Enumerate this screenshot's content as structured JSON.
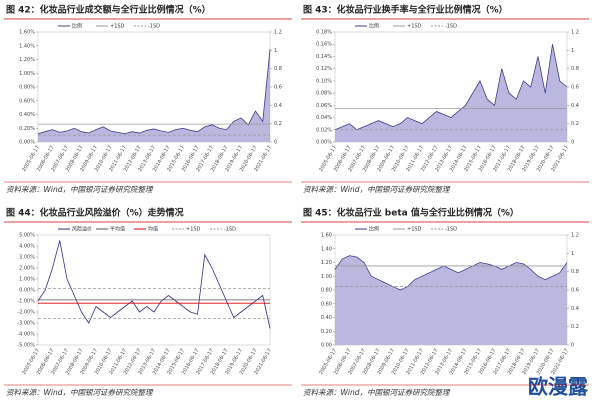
{
  "chart_data": [
    {
      "type": "area",
      "title": "图 42：化妆品行业成交额与全行业比例情况（%）",
      "source": "资料来源：Wind，中国银河证券研究院整理",
      "categories": [
        "2005-06-17",
        null,
        "2006-06-17",
        null,
        "2007-06-17",
        null,
        "2008-06-17",
        null,
        "2009-06-17",
        null,
        "2010-06-17",
        null,
        "2011-06-17",
        null,
        "2012-06-17",
        null,
        "2013-06-17",
        null,
        "2014-06-17",
        null,
        "2015-06-17",
        null,
        "2016-06-17",
        null,
        "2017-06-17",
        null,
        "2018-06-17",
        null,
        "2019-06-17",
        null,
        "2020-06-17",
        null,
        "2021-06-17"
      ],
      "series": [
        {
          "name": "比例",
          "color": "#3c3c8c",
          "values": [
            0.12,
            0.15,
            0.18,
            0.14,
            0.16,
            0.2,
            0.15,
            0.13,
            0.18,
            0.22,
            0.16,
            0.14,
            0.12,
            0.15,
            0.13,
            0.17,
            0.19,
            0.16,
            0.14,
            0.18,
            0.2,
            0.17,
            0.15,
            0.22,
            0.25,
            0.2,
            0.18,
            0.3,
            0.35,
            0.25,
            0.45,
            0.3,
            1.35
          ]
        }
      ],
      "hlines": [
        {
          "name": "+1SD",
          "value": 0.26,
          "color": "#999999",
          "dash": false
        },
        {
          "name": "-1SD",
          "value": 0.1,
          "color": "#999999",
          "dash": true
        }
      ],
      "ylim": [
        0,
        1.6
      ],
      "yticks": [
        {
          "value": 0,
          "label": "0.00%"
        },
        {
          "value": 0.2,
          "label": "0.20%"
        },
        {
          "value": 0.4,
          "label": "0.40%"
        },
        {
          "value": 0.6,
          "label": "0.60%"
        },
        {
          "value": 0.8,
          "label": "0.80%"
        },
        {
          "value": 1.0,
          "label": "1.00%"
        },
        {
          "value": 1.2,
          "label": "1.20%"
        },
        {
          "value": 1.4,
          "label": "1.40%"
        },
        {
          "value": 1.6,
          "label": "1.60%"
        }
      ],
      "y2lim": [
        0,
        1.2
      ],
      "y2ticks": [
        0,
        0.2,
        0.4,
        0.6,
        0.8,
        1,
        1.2
      ]
    },
    {
      "type": "area",
      "title": "图 43：化妆品行业换手率与全行业比例情况（%）",
      "source": "资料来源：Wind，中国银河证券研究院整理",
      "categories": [
        "2005-06-17",
        null,
        "2006-06-17",
        null,
        "2007-06-17",
        null,
        "2008-06-17",
        null,
        "2009-06-17",
        null,
        "2010-06-17",
        null,
        "2011-06-17",
        null,
        "2012-06-17",
        null,
        "2013-06-17",
        null,
        "2014-06-17",
        null,
        "2015-06-17",
        null,
        "2016-06-17",
        null,
        "2017-06-17",
        null,
        "2018-06-17",
        null,
        "2019-06-17",
        null,
        "2020-06-17",
        null,
        "2021-06-17"
      ],
      "series": [
        {
          "name": "比例",
          "color": "#3c3c8c",
          "values": [
            0.02,
            0.025,
            0.03,
            0.02,
            0.025,
            0.03,
            0.035,
            0.03,
            0.025,
            0.03,
            0.04,
            0.035,
            0.03,
            0.04,
            0.05,
            0.045,
            0.04,
            0.05,
            0.06,
            0.08,
            0.1,
            0.07,
            0.06,
            0.12,
            0.08,
            0.07,
            0.1,
            0.09,
            0.14,
            0.08,
            0.16,
            0.1,
            0.09
          ]
        }
      ],
      "hlines": [
        {
          "name": "+1SD",
          "value": 0.055,
          "color": "#999999",
          "dash": false
        },
        {
          "name": "-1SD",
          "value": 0.02,
          "color": "#999999",
          "dash": true
        }
      ],
      "ylim": [
        0,
        0.18
      ],
      "yticks": [
        {
          "value": 0,
          "label": "0.00%"
        },
        {
          "value": 0.02,
          "label": "0.02%"
        },
        {
          "value": 0.04,
          "label": "0.04%"
        },
        {
          "value": 0.06,
          "label": "0.06%"
        },
        {
          "value": 0.08,
          "label": "0.08%"
        },
        {
          "value": 0.1,
          "label": "0.10%"
        },
        {
          "value": 0.12,
          "label": "0.12%"
        },
        {
          "value": 0.14,
          "label": "0.14%"
        },
        {
          "value": 0.16,
          "label": "0.16%"
        },
        {
          "value": 0.18,
          "label": "0.18%"
        }
      ],
      "y2lim": [
        0,
        1.2
      ],
      "y2ticks": [
        0,
        0.2,
        0.4,
        0.6,
        0.8,
        1,
        1.2
      ]
    },
    {
      "type": "line",
      "title": "图 44：化妆品行业风险溢价（%）走势情况",
      "source": "资料来源：Wind，中国银河证券研究院整理",
      "categories": [
        "2005-06-17",
        null,
        "2006-06-17",
        null,
        "2007-06-17",
        null,
        "2008-06-17",
        null,
        "2009-06-17",
        null,
        "2010-06-17",
        null,
        "2011-06-17",
        null,
        "2012-06-17",
        null,
        "2013-06-17",
        null,
        "2014-06-17",
        null,
        "2015-06-17",
        null,
        "2016-06-17",
        null,
        "2017-06-17",
        null,
        "2018-06-17",
        null,
        "2019-06-17",
        null,
        "2020-06-17",
        null,
        "2021-06-17"
      ],
      "series": [
        {
          "name": "风险溢价",
          "color": "#2e2e8a",
          "values": [
            -1,
            0,
            2,
            4.5,
            1,
            -0.5,
            -2,
            -3,
            -1.5,
            -2,
            -2.5,
            -2,
            -1.5,
            -1,
            -2,
            -1.5,
            -2,
            -1,
            -0.5,
            -1,
            -1.5,
            -2,
            -2.2,
            3.2,
            2,
            0.5,
            -1,
            -2.5,
            -2,
            -1.5,
            -1,
            -0.5,
            -3.5
          ]
        }
      ],
      "hlines": [
        {
          "name": "平均值",
          "value": -0.9,
          "color": "#555555",
          "dash": false
        },
        {
          "name": "均值",
          "value": -1.2,
          "color": "#e00000",
          "dash": false
        },
        {
          "name": "+1SD",
          "value": 0.15,
          "color": "#999999",
          "dash": true
        },
        {
          "name": "-1SD",
          "value": -2.6,
          "color": "#999999",
          "dash": true
        }
      ],
      "ylim": [
        -5,
        5
      ],
      "yticks": [
        {
          "value": -5,
          "label": "-5.00%"
        },
        {
          "value": -4,
          "label": "-4.00%"
        },
        {
          "value": -3,
          "label": "-3.00%"
        },
        {
          "value": -2,
          "label": "-2.00%"
        },
        {
          "value": -1,
          "label": "-1.00%"
        },
        {
          "value": 0,
          "label": "0.00%"
        },
        {
          "value": 1,
          "label": "1.00%"
        },
        {
          "value": 2,
          "label": "2.00%"
        },
        {
          "value": 3,
          "label": "3.00%"
        },
        {
          "value": 4,
          "label": "4.00%"
        },
        {
          "value": 5,
          "label": "5.00%"
        }
      ]
    },
    {
      "type": "area",
      "title": "图 45：化妆品行业 beta 值与全行业比例情况（%）",
      "source": "资料来源：Wind，中国银河证券研究院整理",
      "categories": [
        "2005-06-17",
        null,
        "2006-06-17",
        null,
        "2007-06-17",
        null,
        "2008-06-17",
        null,
        "2009-06-17",
        null,
        "2010-06-17",
        null,
        "2011-06-17",
        null,
        "2012-06-17",
        null,
        "2013-06-17",
        null,
        "2014-06-17",
        null,
        "2015-06-17",
        null,
        "2016-06-17",
        null,
        "2017-06-17",
        null,
        "2018-06-17",
        null,
        "2019-06-17",
        null,
        "2020-06-17",
        null,
        "2021-06-17"
      ],
      "series": [
        {
          "name": "比例",
          "color": "#3c3c8c",
          "values": [
            1.1,
            1.25,
            1.3,
            1.28,
            1.2,
            1.0,
            0.95,
            0.9,
            0.85,
            0.8,
            0.85,
            0.95,
            1.0,
            1.05,
            1.1,
            1.15,
            1.1,
            1.05,
            1.1,
            1.15,
            1.2,
            1.18,
            1.15,
            1.1,
            1.15,
            1.2,
            1.18,
            1.1,
            1.0,
            0.95,
            1.0,
            1.05,
            1.2
          ]
        }
      ],
      "hlines": [
        {
          "name": "+1SD",
          "value": 1.15,
          "color": "#999999",
          "dash": false
        },
        {
          "name": "-1SD",
          "value": 0.85,
          "color": "#999999",
          "dash": true
        }
      ],
      "ylim": [
        0,
        1.6
      ],
      "yticks": [
        {
          "value": 0,
          "label": "0.00"
        },
        {
          "value": 0.2,
          "label": "0.20"
        },
        {
          "value": 0.4,
          "label": "0.40"
        },
        {
          "value": 0.6,
          "label": "0.60"
        },
        {
          "value": 0.8,
          "label": "0.80"
        },
        {
          "value": 1.0,
          "label": "1.00"
        },
        {
          "value": 1.2,
          "label": "1.20"
        },
        {
          "value": 1.4,
          "label": "1.40"
        },
        {
          "value": 1.6,
          "label": "1.60"
        }
      ],
      "y2lim": [
        0,
        1.2
      ],
      "y2ticks": [
        0,
        0.2,
        0.4,
        0.6,
        0.8,
        1,
        1.2
      ]
    }
  ],
  "watermark": "欧漫露"
}
